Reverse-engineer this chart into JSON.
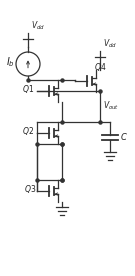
{
  "bg_color": "#ffffff",
  "line_color": "#333333",
  "text_color": "#222222",
  "fig_width": 1.35,
  "fig_height": 2.76,
  "dpi": 100
}
